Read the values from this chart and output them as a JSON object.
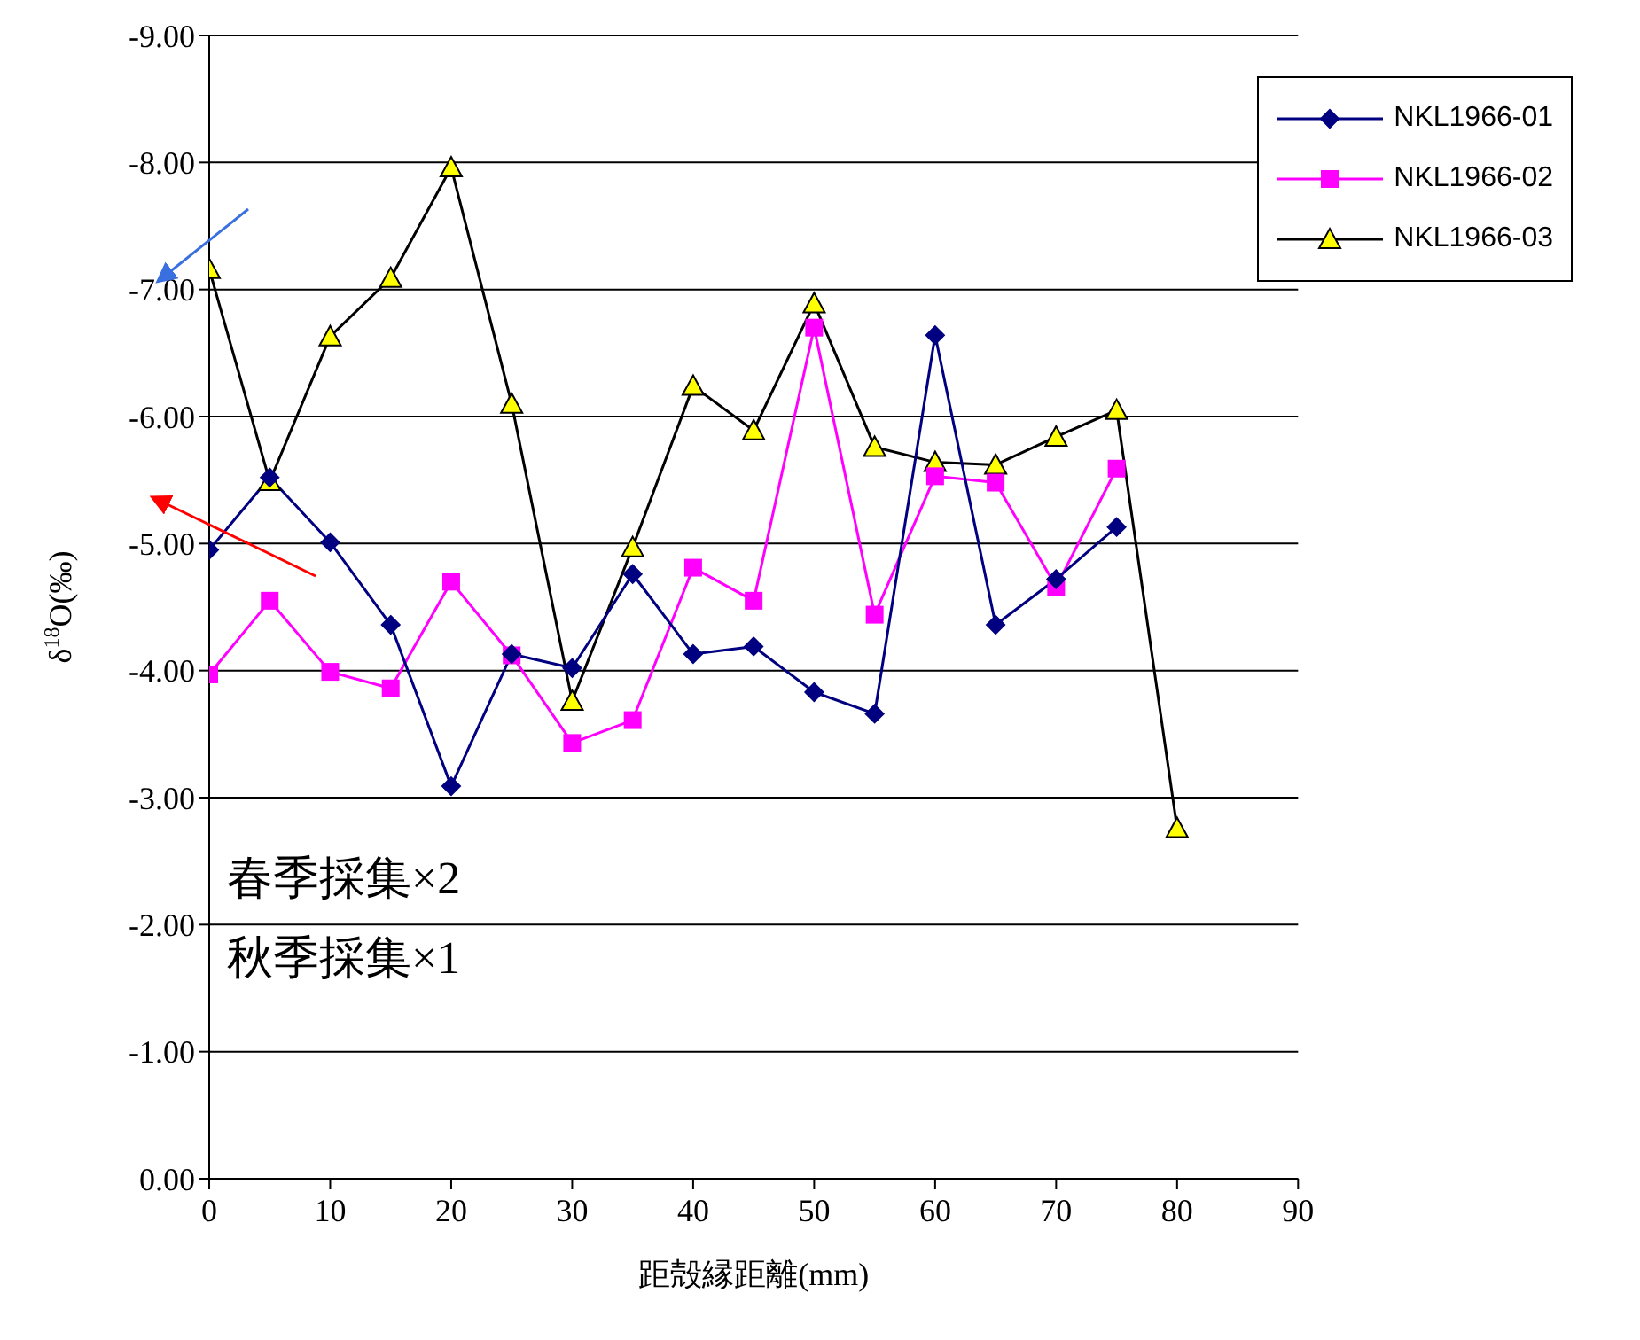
{
  "chart_data": {
    "type": "line",
    "xlabel": "距殻縁距離(mm)",
    "ylabel": "δ$^{18}$O(‰)",
    "xlim": [
      0,
      90
    ],
    "xticks": [
      0,
      10,
      20,
      30,
      40,
      50,
      60,
      70,
      80,
      90
    ],
    "ylim": [
      0,
      -9
    ],
    "yticks": [
      {
        "value": 0,
        "label": "0.00"
      },
      {
        "value": -1,
        "label": "-1.00"
      },
      {
        "value": -2,
        "label": "-2.00"
      },
      {
        "value": -3,
        "label": "-3.00"
      },
      {
        "value": -4,
        "label": "-4.00"
      },
      {
        "value": -5,
        "label": "-5.00"
      },
      {
        "value": -6,
        "label": "-6.00"
      },
      {
        "value": -7,
        "label": "-7.00"
      },
      {
        "value": -8,
        "label": "-8.00"
      },
      {
        "value": -9,
        "label": "-9.00"
      }
    ],
    "grid": "y",
    "legend": "top right",
    "line_style": "solid",
    "annotations": [
      "春季採集×2",
      "秋季採集×1"
    ],
    "series": [
      {
        "name": "NKL1966-01",
        "color": "#000080",
        "marker": "diamond",
        "x": [
          0,
          5,
          10,
          15,
          20,
          25,
          30,
          35,
          40,
          45,
          50,
          55,
          60,
          65,
          70,
          75
        ],
        "values": [
          -4.95,
          -5.52,
          -5.01,
          -4.36,
          -3.09,
          -4.13,
          -4.02,
          -4.76,
          -4.13,
          -4.19,
          -3.83,
          -3.66,
          -6.64,
          -4.36,
          -4.72,
          -5.13
        ]
      },
      {
        "name": "NKL1966-02",
        "color": "#ff00ff",
        "marker": "square",
        "x": [
          0,
          5,
          10,
          15,
          20,
          25,
          30,
          35,
          40,
          45,
          50,
          55,
          60,
          65,
          70,
          75
        ],
        "values": [
          -3.97,
          -4.55,
          -3.99,
          -3.86,
          -4.7,
          -4.12,
          -3.43,
          -3.61,
          -4.81,
          -4.55,
          -6.7,
          -4.44,
          -5.53,
          -5.48,
          -4.66,
          -5.59
        ]
      },
      {
        "name": "NKL1966-03",
        "color": "#000000",
        "marker": "triangle",
        "colors": [
          "#ffff00",
          "#ffff00",
          "#ffff00",
          "#ffff00",
          "#ffff00",
          "#ffff00",
          "#ffff00",
          "#ffff00",
          "#ffff00",
          "#ffff00",
          "#ffff00",
          "#ffff00",
          "#ffff00",
          "#ffff00",
          "#ffff00",
          "#ffff00",
          "#ffff00"
        ],
        "x": [
          0,
          5,
          10,
          15,
          20,
          25,
          30,
          35,
          40,
          45,
          50,
          55,
          60,
          65,
          70,
          75,
          80
        ],
        "values": [
          -7.16,
          -5.49,
          -6.63,
          -7.09,
          -7.96,
          -6.1,
          -3.76,
          -4.97,
          -6.24,
          -5.89,
          -6.89,
          -5.76,
          -5.64,
          -5.62,
          -5.84,
          -6.05,
          -2.76
        ]
      }
    ]
  }
}
